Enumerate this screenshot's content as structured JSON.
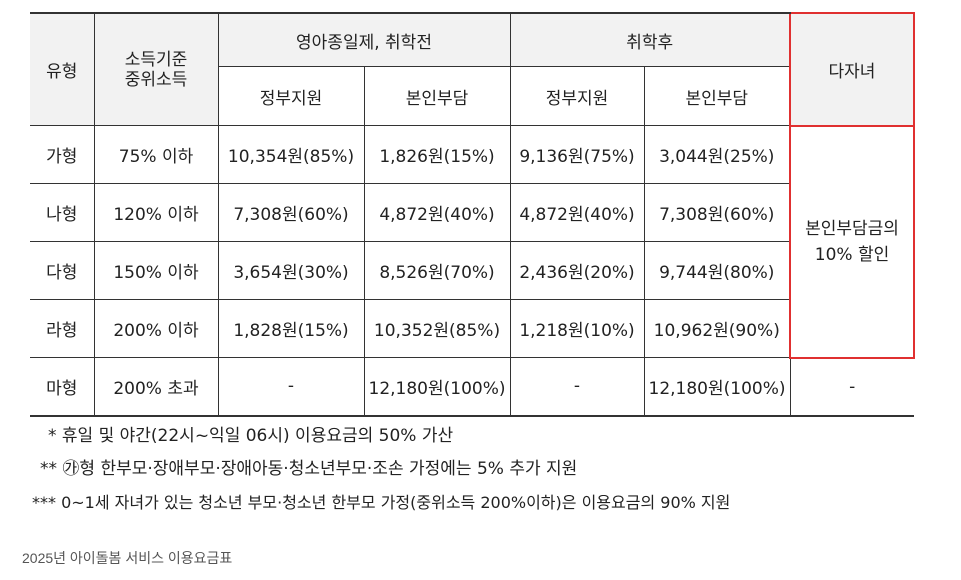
{
  "table": {
    "headers": {
      "type": "유형",
      "income": [
        "소득기준",
        "중위소득"
      ],
      "group_before": "영아종일제, 취학전",
      "group_after": "취학후",
      "multi_child": "다자녀",
      "gov_support": "정부지원",
      "self_pay": "본인부담"
    },
    "rows": [
      {
        "type": "가형",
        "income": "75% 이하",
        "before_gov": "10,354원(85%)",
        "before_self": "1,826원(15%)",
        "after_gov": "9,136원(75%)",
        "after_self": "3,044원(25%)"
      },
      {
        "type": "나형",
        "income": "120% 이하",
        "before_gov": "7,308원(60%)",
        "before_self": "4,872원(40%)",
        "after_gov": "4,872원(40%)",
        "after_self": "7,308원(60%)"
      },
      {
        "type": "다형",
        "income": "150% 이하",
        "before_gov": "3,654원(30%)",
        "before_self": "8,526원(70%)",
        "after_gov": "2,436원(20%)",
        "after_self": "9,744원(80%)"
      },
      {
        "type": "라형",
        "income": "200% 이하",
        "before_gov": "1,828원(15%)",
        "before_self": "10,352원(85%)",
        "after_gov": "1,218원(10%)",
        "after_self": "10,962원(90%)"
      },
      {
        "type": "마형",
        "income": "200% 초과",
        "before_gov": "-",
        "before_self": "12,180원(100%)",
        "after_gov": "-",
        "after_self": "12,180원(100%)",
        "multi": "-"
      }
    ],
    "multi_discount": [
      "본인부담금의",
      "10% 할인"
    ]
  },
  "notes": [
    {
      "mark": "*",
      "text": "휴일 및 야간(22시~익일 06시) 이용요금의 50% 가산"
    },
    {
      "mark": "**",
      "text": "㉮형 한부모·장애부모·장애아동·청소년부모·조손 가정에는 5% 추가 지원"
    },
    {
      "mark": "***",
      "text": "0~1세 자녀가 있는 청소년 부모·청소년 한부모 가정(중위소득 200%이하)은 이용요금의 90% 지원"
    }
  ],
  "caption": "2025년 아이돌봄 서비스 이용요금표",
  "colors": {
    "highlight_border": "#e03030",
    "header_bg": "#f2f2f2"
  }
}
